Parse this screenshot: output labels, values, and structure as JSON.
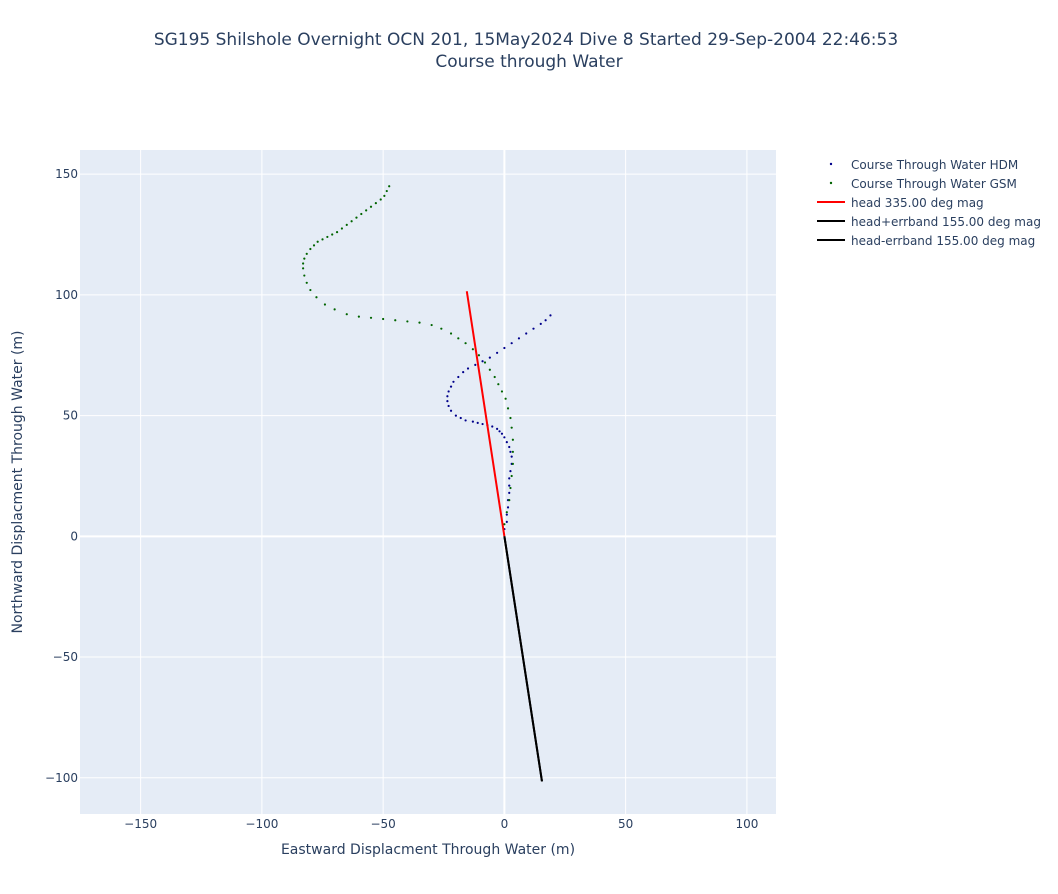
{
  "chart_data": {
    "type": "scatter",
    "title": "SG195 Shilshole Overnight OCN 201, 15May2024 Dive 8 Started 29-Sep-2004 22:46:53",
    "subtitle": "Course through Water",
    "xlabel": "Eastward Displacment Through Water (m)",
    "ylabel": "Northward Displacment Through Water (m)",
    "xlim": [
      -175,
      112
    ],
    "ylim": [
      -115,
      160
    ],
    "xticks": [
      -150,
      -100,
      -50,
      0,
      50,
      100
    ],
    "yticks": [
      -100,
      -50,
      0,
      50,
      100,
      150
    ],
    "xtick_labels": [
      "−150",
      "−100",
      "−50",
      "0",
      "50",
      "100"
    ],
    "ytick_labels": [
      "−100",
      "−50",
      "0",
      "50",
      "100",
      "150"
    ],
    "grid": true,
    "legend_position": "top-right outside plot",
    "series": [
      {
        "name": "Course Through Water HDM",
        "mode": "markers",
        "color": "#00008b",
        "x": [
          0,
          1,
          1,
          1.5,
          1.5,
          2,
          2,
          2,
          2.5,
          3,
          3,
          2.5,
          2,
          1,
          0,
          -1,
          -2,
          -3,
          -5,
          -7,
          -9,
          -11,
          -13,
          -16,
          -18,
          -20,
          -22,
          -23,
          -23.5,
          -23.5,
          -23,
          -22,
          -21,
          -19,
          -17,
          -15,
          -12,
          -9,
          -6,
          -3,
          0,
          3,
          6,
          9,
          12,
          15,
          17,
          19
        ],
        "y": [
          3,
          6,
          9,
          12,
          15,
          18,
          21,
          24,
          27,
          30,
          33,
          35,
          37,
          39,
          41,
          42.5,
          43.5,
          44.5,
          45.5,
          46,
          46.5,
          47,
          47.5,
          48,
          49,
          50,
          52,
          54,
          56,
          58,
          60,
          62,
          64,
          66,
          68,
          69.5,
          71,
          72.5,
          74,
          76,
          78,
          80,
          82,
          84,
          86,
          88,
          89.5,
          91.5
        ]
      },
      {
        "name": "Course Through Water GSM",
        "mode": "markers",
        "color": "#006400",
        "x": [
          0,
          1,
          2,
          2.5,
          3,
          3.5,
          3.5,
          3.5,
          3,
          2.5,
          1.5,
          0.5,
          -1,
          -2.5,
          -4,
          -6,
          -8,
          -10.5,
          -13,
          -16,
          -19,
          -22,
          -26,
          -30,
          -35,
          -40,
          -45,
          -50,
          -55,
          -60,
          -65,
          -70,
          -74,
          -77.5,
          -80,
          -81.5,
          -82.5,
          -83,
          -83,
          -82.5,
          -81.5,
          -80,
          -78.5,
          -77,
          -75,
          -73,
          -71,
          -69,
          -67,
          -65,
          -63,
          -61,
          -59,
          -57,
          -55,
          -53,
          -51,
          -49.5,
          -48.5,
          -47.5
        ],
        "y": [
          5,
          10,
          15,
          20,
          25,
          30,
          35,
          40,
          45,
          49,
          53,
          57,
          60,
          63,
          66,
          69,
          72,
          75,
          77.5,
          80,
          82,
          84,
          86,
          87.5,
          88.5,
          89,
          89.5,
          90,
          90.5,
          91,
          92,
          94,
          96,
          99,
          102,
          105,
          108,
          111,
          113,
          115,
          117,
          119,
          120.5,
          122,
          123,
          124,
          125,
          126,
          127.5,
          129,
          130.5,
          132,
          133.5,
          135,
          136.5,
          138,
          139.5,
          141,
          143,
          145
        ]
      },
      {
        "name": "head 335.00 deg mag",
        "mode": "lines",
        "color": "#ff0000",
        "x": [
          0,
          -15.5
        ],
        "y": [
          0,
          101.5
        ]
      },
      {
        "name": "head+errband 155.00 deg mag",
        "mode": "lines",
        "color": "#000000",
        "x": [
          0,
          15.5
        ],
        "y": [
          0,
          -101.5
        ]
      },
      {
        "name": "head-errband 155.00 deg mag",
        "mode": "lines",
        "color": "#000000",
        "x": [
          0,
          15.5
        ],
        "y": [
          0,
          -101.5
        ]
      }
    ]
  }
}
